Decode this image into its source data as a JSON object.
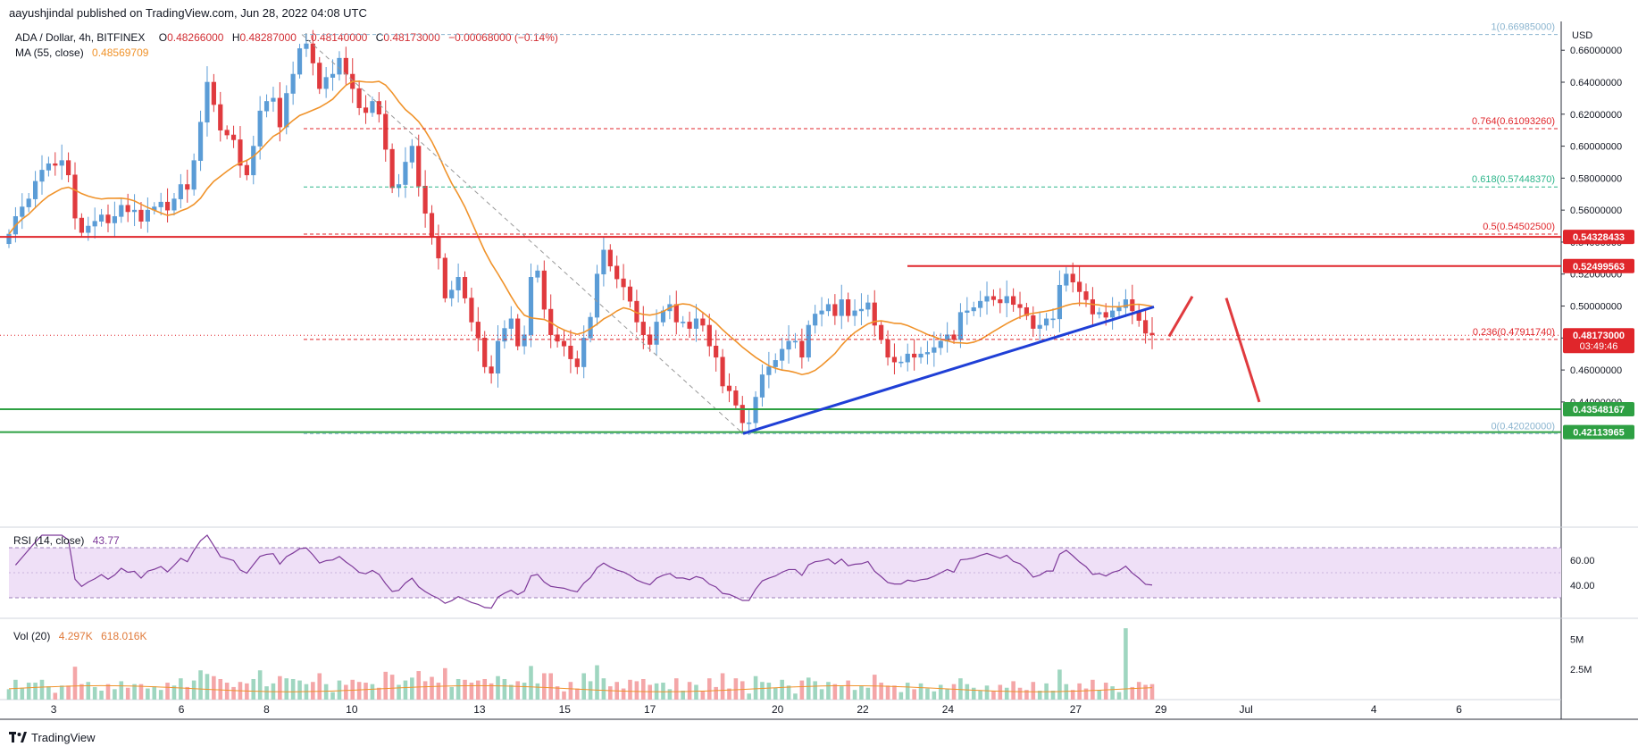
{
  "header": {
    "author": "aayushjindal",
    "published_text": "published on TradingView.com, Jun 28, 2022 04:08 UTC"
  },
  "legend": {
    "symbol": "ADA / Dollar, 4h, BITFINEX",
    "open_label": "O",
    "open": "0.48266000",
    "high_label": "H",
    "high": "0.48287000",
    "low_label": "L",
    "low": "0.48140000",
    "close_label": "C",
    "close": "0.48173000",
    "change": "−0.00068000 (−0.14%)",
    "ma_label": "MA (55, close)",
    "ma_value": "0.48569709"
  },
  "rsi_legend": {
    "label": "RSI (14, close)",
    "value": "43.77"
  },
  "vol_legend": {
    "label": "Vol (20)",
    "value1": "4.297K",
    "value2": "618.016K"
  },
  "footer": {
    "brand": "TradingView"
  },
  "currency": "USD",
  "colors": {
    "up": "#5b9cd6",
    "down": "#e03a3e",
    "ma": "#f0932b",
    "trendline": "#1f3fd6",
    "support": "#2ea043",
    "resistance": "#e0262b",
    "rsi": "#7e3a9a",
    "rsi_band": "#efe0f7",
    "fib_0618": "#2bb58a",
    "fib_0_1": "#8ab4cf"
  },
  "chart_data": [
    {
      "type": "candlestick",
      "title": "ADA / Dollar, 4h, BITFINEX",
      "ylabel": "USD",
      "ylim": [
        0.412,
        0.678
      ],
      "y_ticks": [
        "0.44000000",
        "0.46000000",
        "0.48000000",
        "0.50000000",
        "0.52000000",
        "0.54000000",
        "0.56000000",
        "0.58000000",
        "0.60000000",
        "0.62000000",
        "0.64000000",
        "0.66000000"
      ],
      "x_ticks": [
        {
          "label": "3",
          "day": 3
        },
        {
          "label": "6",
          "day": 6
        },
        {
          "label": "8",
          "day": 8
        },
        {
          "label": "10",
          "day": 10
        },
        {
          "label": "13",
          "day": 13
        },
        {
          "label": "15",
          "day": 15
        },
        {
          "label": "17",
          "day": 17
        },
        {
          "label": "20",
          "day": 20
        },
        {
          "label": "22",
          "day": 22
        },
        {
          "label": "24",
          "day": 24
        },
        {
          "label": "27",
          "day": 27
        },
        {
          "label": "29",
          "day": 29
        },
        {
          "label": "Jul",
          "day": 31
        },
        {
          "label": "4",
          "day": 34
        },
        {
          "label": "6",
          "day": 36
        }
      ],
      "x_range_days": [
        1.74,
        38.4
      ],
      "closes": [
        0.545,
        0.556,
        0.562,
        0.567,
        0.578,
        0.585,
        0.589,
        0.588,
        0.591,
        0.582,
        0.555,
        0.546,
        0.55,
        0.553,
        0.557,
        0.552,
        0.556,
        0.563,
        0.559,
        0.56,
        0.553,
        0.56,
        0.562,
        0.565,
        0.56,
        0.567,
        0.576,
        0.573,
        0.591,
        0.615,
        0.64,
        0.626,
        0.61,
        0.607,
        0.604,
        0.588,
        0.582,
        0.6,
        0.622,
        0.628,
        0.63,
        0.612,
        0.633,
        0.645,
        0.661,
        0.664,
        0.652,
        0.636,
        0.643,
        0.645,
        0.655,
        0.645,
        0.636,
        0.624,
        0.621,
        0.628,
        0.62,
        0.598,
        0.574,
        0.576,
        0.59,
        0.6,
        0.575,
        0.558,
        0.543,
        0.53,
        0.505,
        0.51,
        0.518,
        0.505,
        0.49,
        0.48,
        0.462,
        0.458,
        0.478,
        0.486,
        0.492,
        0.475,
        0.482,
        0.518,
        0.522,
        0.498,
        0.482,
        0.478,
        0.475,
        0.467,
        0.462,
        0.48,
        0.493,
        0.52,
        0.535,
        0.525,
        0.517,
        0.512,
        0.503,
        0.49,
        0.482,
        0.476,
        0.49,
        0.497,
        0.501,
        0.49,
        0.49,
        0.486,
        0.492,
        0.488,
        0.475,
        0.468,
        0.45,
        0.447,
        0.438,
        0.427,
        0.427,
        0.443,
        0.457,
        0.462,
        0.466,
        0.473,
        0.478,
        0.478,
        0.468,
        0.488,
        0.495,
        0.497,
        0.501,
        0.494,
        0.504,
        0.494,
        0.497,
        0.498,
        0.502,
        0.488,
        0.479,
        0.468,
        0.465,
        0.465,
        0.47,
        0.468,
        0.47,
        0.471,
        0.474,
        0.478,
        0.482,
        0.479,
        0.496,
        0.497,
        0.499,
        0.503,
        0.506,
        0.504,
        0.502,
        0.506,
        0.501,
        0.499,
        0.494,
        0.486,
        0.488,
        0.492,
        0.492,
        0.513,
        0.52,
        0.515,
        0.509,
        0.504,
        0.495,
        0.496,
        0.493,
        0.497,
        0.499,
        0.504,
        0.497,
        0.491,
        0.483,
        0.482
      ],
      "rsi": {
        "ylim": [
          15,
          85
        ],
        "ticks": [
          "40.00",
          "60.00"
        ],
        "band": [
          30,
          70
        ],
        "last": 43.77
      },
      "volume": {
        "ticks": [
          "2.5M",
          "5M"
        ],
        "max_tick": 5000000
      },
      "price_labels": [
        {
          "value": 0.54328433,
          "text": "0.54328433",
          "color": "#e0262b"
        },
        {
          "value": 0.52499563,
          "text": "0.52499563",
          "color": "#e0262b"
        },
        {
          "value": 0.48173,
          "text": "0.48173000",
          "color": "#e0262b",
          "sub": "03:49:46"
        },
        {
          "value": 0.43548167,
          "text": "0.43548167",
          "color": "#2ea043"
        },
        {
          "value": 0.42113965,
          "text": "0.42113965",
          "color": "#2ea043"
        }
      ],
      "fib_levels": [
        {
          "ratio": "1",
          "value": 0.66985,
          "text": "1(0.66985000)",
          "color": "#8ab4cf"
        },
        {
          "ratio": "0.764",
          "value": 0.6109326,
          "text": "0.764(0.61093260)",
          "color": "#e0262b"
        },
        {
          "ratio": "0.618",
          "value": 0.5744837,
          "text": "0.618(0.57448370)",
          "color": "#2bb58a"
        },
        {
          "ratio": "0.5",
          "value": 0.545025,
          "text": "0.5(0.54502500)",
          "color": "#e0262b"
        },
        {
          "ratio": "0.236",
          "value": 0.4791174,
          "text": "0.236(0.47911740)",
          "color": "#e0262b"
        },
        {
          "ratio": "0",
          "value": 0.4202,
          "text": "0(0.42020000)",
          "color": "#8ab4cf"
        }
      ]
    }
  ]
}
